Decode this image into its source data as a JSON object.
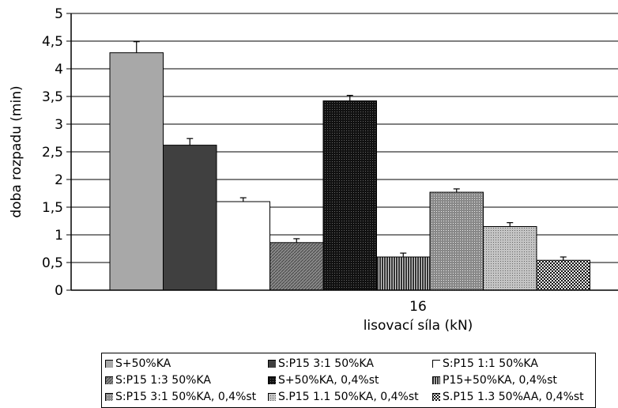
{
  "chart_data": {
    "type": "bar",
    "categories": [
      "16"
    ],
    "xlabel": "lisovací síla (kN)",
    "ylabel": "doba rozpadu (min)",
    "ylim": [
      0,
      5
    ],
    "yticks": [
      "0",
      "0,5",
      "1",
      "1,5",
      "2",
      "2,5",
      "3",
      "3,5",
      "4",
      "4,5",
      "5"
    ],
    "grid": true,
    "legend_position": "bottom",
    "series": [
      {
        "name": "S+50%KA",
        "values": [
          4.29
        ],
        "error": [
          0.2
        ],
        "fill": "solid-gray"
      },
      {
        "name": "S:P15 3:1 50%KA",
        "values": [
          2.62
        ],
        "error": [
          0.12
        ],
        "fill": "solid-dark"
      },
      {
        "name": "S:P15 1:1 50%KA",
        "values": [
          1.6
        ],
        "error": [
          0.07
        ],
        "fill": "white"
      },
      {
        "name": "S:P15 1:3 50%KA",
        "values": [
          0.86
        ],
        "error": [
          0.07
        ],
        "fill": "hatch-gray"
      },
      {
        "name": "S+50%KA, 0,4%st",
        "values": [
          3.42
        ],
        "error": [
          0.1
        ],
        "fill": "hatch-black"
      },
      {
        "name": "P15+50%KA, 0,4%st",
        "values": [
          0.6
        ],
        "error": [
          0.07
        ],
        "fill": "vertical-lines"
      },
      {
        "name": "S:P15 3:1 50%KA, 0,4%st",
        "values": [
          1.77
        ],
        "error": [
          0.06
        ],
        "fill": "dots-gray"
      },
      {
        "name": "S.P15 1.1 50%KA, 0,4%st",
        "values": [
          1.15
        ],
        "error": [
          0.07
        ],
        "fill": "fine-dots"
      },
      {
        "name": "S.P15 1.3 50%AA, 0,4%st",
        "values": [
          0.54
        ],
        "error": [
          0.06
        ],
        "fill": "checker"
      }
    ]
  },
  "colors": {
    "solid-gray": "#a8a8a8",
    "solid-dark": "#404040",
    "white": "#ffffff",
    "hatch-gray": "#777777",
    "hatch-black": "#111111",
    "vertical-lines": "#555555",
    "dots-gray": "#9a9a9a",
    "fine-dots": "#b0b0b0",
    "checker": "#222222"
  }
}
